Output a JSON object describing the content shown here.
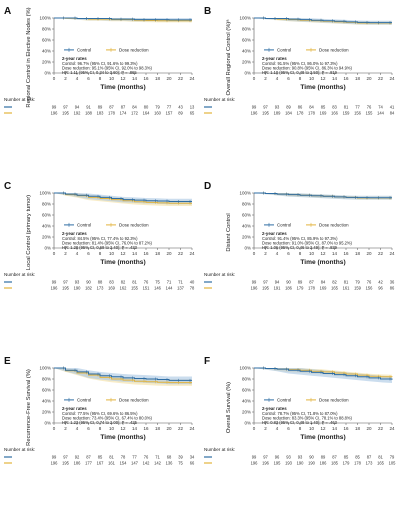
{
  "colors": {
    "control": "#2e6da4",
    "dose": "#e2b33c",
    "control_band": "#a9c7e3",
    "dose_band": "#f3dfa2"
  },
  "legend": {
    "control": "Control",
    "dose": "Dose reduction"
  },
  "x_label": "Time (months)",
  "x_ticks": [
    "0",
    "2",
    "4",
    "6",
    "8",
    "10",
    "12",
    "14",
    "16",
    "18",
    "20",
    "22",
    "24"
  ],
  "y_ticks": [
    "0%",
    "20%",
    "40%",
    "60%",
    "80%",
    "100%"
  ],
  "number_at_risk_label": "Number at risk:",
  "chart_data": [
    {
      "panel": "A",
      "type": "line",
      "ylabel": "Regional Control in Elective Nodes (%)",
      "xlim": [
        0,
        24
      ],
      "ylim": [
        0,
        100
      ],
      "series": [
        {
          "name": "Control",
          "x": [
            0,
            2,
            4,
            6,
            8,
            10,
            12,
            14,
            16,
            18,
            20,
            22,
            24
          ],
          "y": [
            100,
            100,
            99,
            99,
            99,
            98,
            98,
            97,
            97,
            97,
            96.7,
            96.7,
            96.7
          ],
          "band": 3
        },
        {
          "name": "Dose reduction",
          "x": [
            0,
            2,
            4,
            6,
            8,
            10,
            12,
            14,
            16,
            18,
            20,
            22,
            24
          ],
          "y": [
            100,
            99.5,
            99,
            98,
            98,
            97,
            97,
            96,
            95.5,
            95.1,
            95.1,
            95.1,
            95.1
          ],
          "band": 3
        }
      ],
      "rates_title": "2-year rates",
      "rates": [
        "Control: 96.7% (95% CI, 91.6% to 99.3%)",
        "Dose reduction: 95.1% (95% CI, 92.0% to 98.3%)",
        "HR: 1.11 (95% CI, 0.34 to 3.60); P = .865"
      ],
      "risk_control": [
        "99",
        "97",
        "94",
        "91",
        "89",
        "87",
        "87",
        "84",
        "80",
        "79",
        "77",
        "43",
        "13"
      ],
      "risk_dose": [
        "196",
        "195",
        "192",
        "188",
        "183",
        "178",
        "174",
        "172",
        "164",
        "160",
        "157",
        "89",
        "65"
      ]
    },
    {
      "panel": "B",
      "type": "line",
      "ylabel": "Overall Regional Control (%)ᵃ",
      "xlim": [
        0,
        24
      ],
      "ylim": [
        0,
        100
      ],
      "series": [
        {
          "name": "Control",
          "x": [
            0,
            2,
            4,
            6,
            8,
            10,
            12,
            14,
            16,
            18,
            20,
            22,
            24
          ],
          "y": [
            100,
            99,
            99,
            98,
            97,
            96,
            95,
            94,
            93,
            92,
            91.5,
            91.5,
            91.5
          ],
          "band": 3.5
        },
        {
          "name": "Dose reduction",
          "x": [
            0,
            2,
            4,
            6,
            8,
            10,
            12,
            14,
            16,
            18,
            20,
            22,
            24
          ],
          "y": [
            100,
            99,
            98,
            97,
            96,
            95,
            94,
            93,
            92,
            91,
            90.8,
            90.8,
            90.8
          ],
          "band": 3
        }
      ],
      "rates_title": "2-year rates",
      "rates": [
        "Control: 91.5% (95% CI, 86.0% to 97.3%)",
        "Dose reduction: 90.8% (95% CI, 86.3% to 94.9%)",
        "HR: 1.10 (95% CI, 0.48 to 2.50); P = .819"
      ],
      "risk_control": [
        "99",
        "97",
        "93",
        "89",
        "86",
        "84",
        "85",
        "83",
        "81",
        "77",
        "76",
        "74",
        "41"
      ],
      "risk_dose": [
        "196",
        "195",
        "189",
        "184",
        "178",
        "178",
        "169",
        "166",
        "159",
        "156",
        "155",
        "144",
        "84"
      ]
    },
    {
      "panel": "C",
      "type": "line",
      "ylabel": "Local Control (primary tumor)",
      "xlim": [
        0,
        24
      ],
      "ylim": [
        0,
        100
      ],
      "series": [
        {
          "name": "Control",
          "x": [
            0,
            2,
            4,
            6,
            8,
            10,
            12,
            14,
            16,
            18,
            20,
            22,
            24
          ],
          "y": [
            100,
            98,
            96,
            94,
            92,
            90,
            88,
            87,
            86,
            85.5,
            84.5,
            84.5,
            84.5
          ],
          "band": 5
        },
        {
          "name": "Dose reduction",
          "x": [
            0,
            2,
            4,
            6,
            8,
            10,
            12,
            14,
            16,
            18,
            20,
            22,
            24
          ],
          "y": [
            100,
            97,
            95,
            92,
            90,
            88,
            86,
            84,
            83,
            82,
            81.4,
            81.4,
            81.4
          ],
          "band": 5
        }
      ],
      "rates_title": "2-year rates",
      "rates": [
        "Control: 84.5% (95% CI, 77.4% to 92.3%)",
        "Dose reduction: 81.4% (95% CI, 76.0% to 87.2%)",
        "HR: 1.28 (95% CI, 0.69 to 2.40); P = .433"
      ],
      "risk_control": [
        "99",
        "97",
        "93",
        "90",
        "88",
        "83",
        "82",
        "81",
        "76",
        "75",
        "71",
        "71",
        "40"
      ],
      "risk_dose": [
        "196",
        "195",
        "190",
        "182",
        "173",
        "169",
        "162",
        "155",
        "151",
        "146",
        "144",
        "137",
        "78"
      ]
    },
    {
      "panel": "D",
      "type": "line",
      "ylabel": "Distant Control",
      "xlim": [
        0,
        24
      ],
      "ylim": [
        0,
        100
      ],
      "series": [
        {
          "name": "Control",
          "x": [
            0,
            2,
            4,
            6,
            8,
            10,
            12,
            14,
            16,
            18,
            20,
            22,
            24
          ],
          "y": [
            100,
            99,
            98,
            97,
            96,
            95,
            94,
            93,
            92,
            91.5,
            91.4,
            91.4,
            91.4
          ],
          "band": 3.5
        },
        {
          "name": "Dose reduction",
          "x": [
            0,
            2,
            4,
            6,
            8,
            10,
            12,
            14,
            16,
            18,
            20,
            22,
            24
          ],
          "y": [
            100,
            99,
            98,
            97,
            96,
            95,
            94,
            93,
            92,
            91,
            91.0,
            91.0,
            91.0
          ],
          "band": 3
        }
      ],
      "rates_title": "2-year rates",
      "rates": [
        "Control: 91.4% (95% CI, 85.9% to 97.3%)",
        "Dose reduction: 91.0% (95% CI, 87.0% to 95.2%)",
        "HR: 1.06 (95% CI, 0.46 to 2.49); P = .839"
      ],
      "risk_control": [
        "99",
        "97",
        "94",
        "90",
        "89",
        "87",
        "84",
        "82",
        "81",
        "79",
        "76",
        "42",
        "36"
      ],
      "risk_dose": [
        "196",
        "195",
        "191",
        "186",
        "179",
        "178",
        "169",
        "165",
        "161",
        "159",
        "156",
        "96",
        "86"
      ]
    },
    {
      "panel": "E",
      "type": "line",
      "ylabel": "Recurrence-Free Survival (%)",
      "xlim": [
        0,
        24
      ],
      "ylim": [
        0,
        100
      ],
      "series": [
        {
          "name": "Control",
          "x": [
            0,
            2,
            4,
            6,
            8,
            10,
            12,
            14,
            16,
            18,
            20,
            22,
            24
          ],
          "y": [
            100,
            96,
            93,
            89,
            86,
            84,
            82,
            81,
            80,
            79,
            77.5,
            77.5,
            77.5
          ],
          "band": 7
        },
        {
          "name": "Dose reduction",
          "x": [
            0,
            2,
            4,
            6,
            8,
            10,
            12,
            14,
            16,
            18,
            20,
            22,
            24
          ],
          "y": [
            100,
            95,
            91,
            87,
            83,
            80,
            78,
            76,
            75,
            74,
            73.4,
            73.4,
            73.4
          ],
          "band": 6
        }
      ],
      "rates_title": "2-year rates",
      "rates": [
        "Control: 77.5% (95% CI, 69.6% to 86.5%)",
        "Dose reduction: 73.4% (95% CI, 67.4% to 80.0%)",
        "HR: 1.23 (95% CI, 0.74 to 2.00); P = .425"
      ],
      "risk_control": [
        "99",
        "97",
        "92",
        "87",
        "85",
        "81",
        "78",
        "77",
        "76",
        "71",
        "68",
        "39",
        "34"
      ],
      "risk_dose": [
        "196",
        "195",
        "186",
        "177",
        "167",
        "161",
        "154",
        "147",
        "142",
        "142",
        "136",
        "75",
        "66"
      ]
    },
    {
      "panel": "F",
      "type": "line",
      "ylabel": "Overall Survival (%)",
      "xlim": [
        0,
        24
      ],
      "ylim": [
        0,
        100
      ],
      "series": [
        {
          "name": "Control",
          "x": [
            0,
            2,
            4,
            6,
            8,
            10,
            12,
            14,
            16,
            18,
            20,
            22,
            24
          ],
          "y": [
            100,
            99,
            98,
            96,
            94,
            92,
            90,
            88,
            86,
            84,
            82,
            80,
            78.7
          ],
          "band": 6
        },
        {
          "name": "Dose reduction",
          "x": [
            0,
            2,
            4,
            6,
            8,
            10,
            12,
            14,
            16,
            18,
            20,
            22,
            24
          ],
          "y": [
            100,
            99,
            98,
            97,
            96,
            94,
            93,
            91,
            89,
            87,
            85,
            84,
            83.3
          ],
          "band": 4.5
        }
      ],
      "rates_title": "2-year rates",
      "rates": [
        "Control: 78.7% (95% CI, 71.8% to 87.0%)",
        "Dose reduction: 83.3% (95% CI, 78.1% to 88.8%)",
        "HR: 0.83 (95% CI, 0.48 to 1.40); P = .463"
      ],
      "risk_control": [
        "99",
        "97",
        "96",
        "93",
        "93",
        "90",
        "89",
        "87",
        "85",
        "85",
        "87",
        "81",
        "79"
      ],
      "risk_dose": [
        "196",
        "196",
        "195",
        "193",
        "190",
        "190",
        "186",
        "185",
        "179",
        "178",
        "173",
        "165",
        "105"
      ]
    }
  ]
}
